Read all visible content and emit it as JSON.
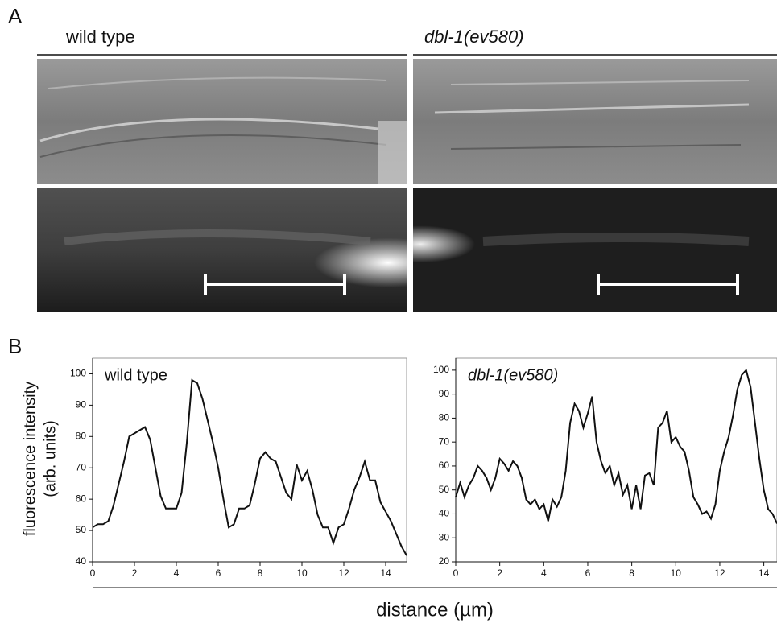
{
  "panel_a": {
    "label": "A",
    "columns": [
      "wild type",
      "dbl-1(ev580)"
    ]
  },
  "panel_b": {
    "label": "B",
    "ylabel": [
      "fluorescence intensity",
      "(arb. units)"
    ],
    "xlabel": "distance (µm)"
  },
  "chart_data": [
    {
      "type": "line",
      "title": "wild type",
      "x": [
        0,
        0.25,
        0.5,
        0.75,
        1,
        1.25,
        1.5,
        1.75,
        2,
        2.25,
        2.5,
        2.75,
        3,
        3.25,
        3.5,
        3.75,
        4,
        4.25,
        4.5,
        4.75,
        5,
        5.25,
        5.5,
        5.75,
        6,
        6.25,
        6.5,
        6.75,
        7,
        7.25,
        7.5,
        7.75,
        8,
        8.25,
        8.5,
        8.75,
        9,
        9.25,
        9.5,
        9.75,
        10,
        10.25,
        10.5,
        10.75,
        11,
        11.25,
        11.5,
        11.75,
        12,
        12.25,
        12.5,
        12.75,
        13,
        13.25,
        13.5,
        13.75,
        14,
        14.25,
        14.5,
        14.75,
        15
      ],
      "series": [
        {
          "color": "#111111",
          "values": [
            51,
            52,
            52,
            53,
            58,
            65,
            72,
            80,
            81,
            82,
            83,
            79,
            70,
            61,
            57,
            57,
            57,
            62,
            78,
            98,
            97,
            92,
            85,
            78,
            70,
            60,
            51,
            52,
            57,
            57,
            58,
            65,
            73,
            75,
            73,
            72,
            67,
            62,
            60,
            71,
            66,
            69,
            63,
            55,
            51,
            51,
            46,
            51,
            52,
            57,
            63,
            67,
            72,
            66,
            66,
            59,
            56,
            53,
            49,
            45,
            42
          ]
        }
      ],
      "xlim": [
        0,
        15
      ],
      "ylim": [
        40,
        105
      ],
      "xticks": [
        0,
        2,
        4,
        6,
        8,
        10,
        12,
        14
      ],
      "yticks": [
        40,
        50,
        60,
        70,
        80,
        90,
        100
      ]
    },
    {
      "type": "line",
      "title": "dbl-1(ev580)",
      "x": [
        0,
        0.2,
        0.4,
        0.6,
        0.8,
        1,
        1.2,
        1.4,
        1.6,
        1.8,
        2,
        2.2,
        2.4,
        2.6,
        2.8,
        3,
        3.2,
        3.4,
        3.6,
        3.8,
        4,
        4.2,
        4.4,
        4.6,
        4.8,
        5,
        5.2,
        5.4,
        5.6,
        5.8,
        6,
        6.2,
        6.4,
        6.6,
        6.8,
        7,
        7.2,
        7.4,
        7.6,
        7.8,
        8,
        8.2,
        8.4,
        8.6,
        8.8,
        9,
        9.2,
        9.4,
        9.6,
        9.8,
        10,
        10.2,
        10.4,
        10.6,
        10.8,
        11,
        11.2,
        11.4,
        11.6,
        11.8,
        12,
        12.2,
        12.4,
        12.6,
        12.8,
        13,
        13.2,
        13.4,
        13.6,
        13.8,
        14,
        14.2,
        14.4,
        14.6
      ],
      "series": [
        {
          "color": "#111111",
          "values": [
            47,
            53,
            47,
            52,
            55,
            60,
            58,
            55,
            50,
            55,
            63,
            61,
            58,
            62,
            60,
            55,
            46,
            44,
            46,
            42,
            44,
            37,
            46,
            43,
            47,
            58,
            78,
            86,
            83,
            76,
            82,
            89,
            70,
            62,
            57,
            60,
            52,
            57,
            48,
            52,
            42,
            52,
            42,
            56,
            57,
            52,
            76,
            78,
            83,
            70,
            72,
            68,
            66,
            58,
            47,
            44,
            40,
            41,
            38,
            44,
            58,
            66,
            72,
            81,
            92,
            98,
            100,
            93,
            78,
            63,
            50,
            42,
            40,
            36
          ]
        }
      ],
      "xlim": [
        0,
        14.6
      ],
      "ylim": [
        20,
        105
      ],
      "xticks": [
        0,
        2,
        4,
        6,
        8,
        10,
        12,
        14
      ],
      "yticks": [
        20,
        30,
        40,
        50,
        60,
        70,
        80,
        90,
        100
      ]
    }
  ]
}
